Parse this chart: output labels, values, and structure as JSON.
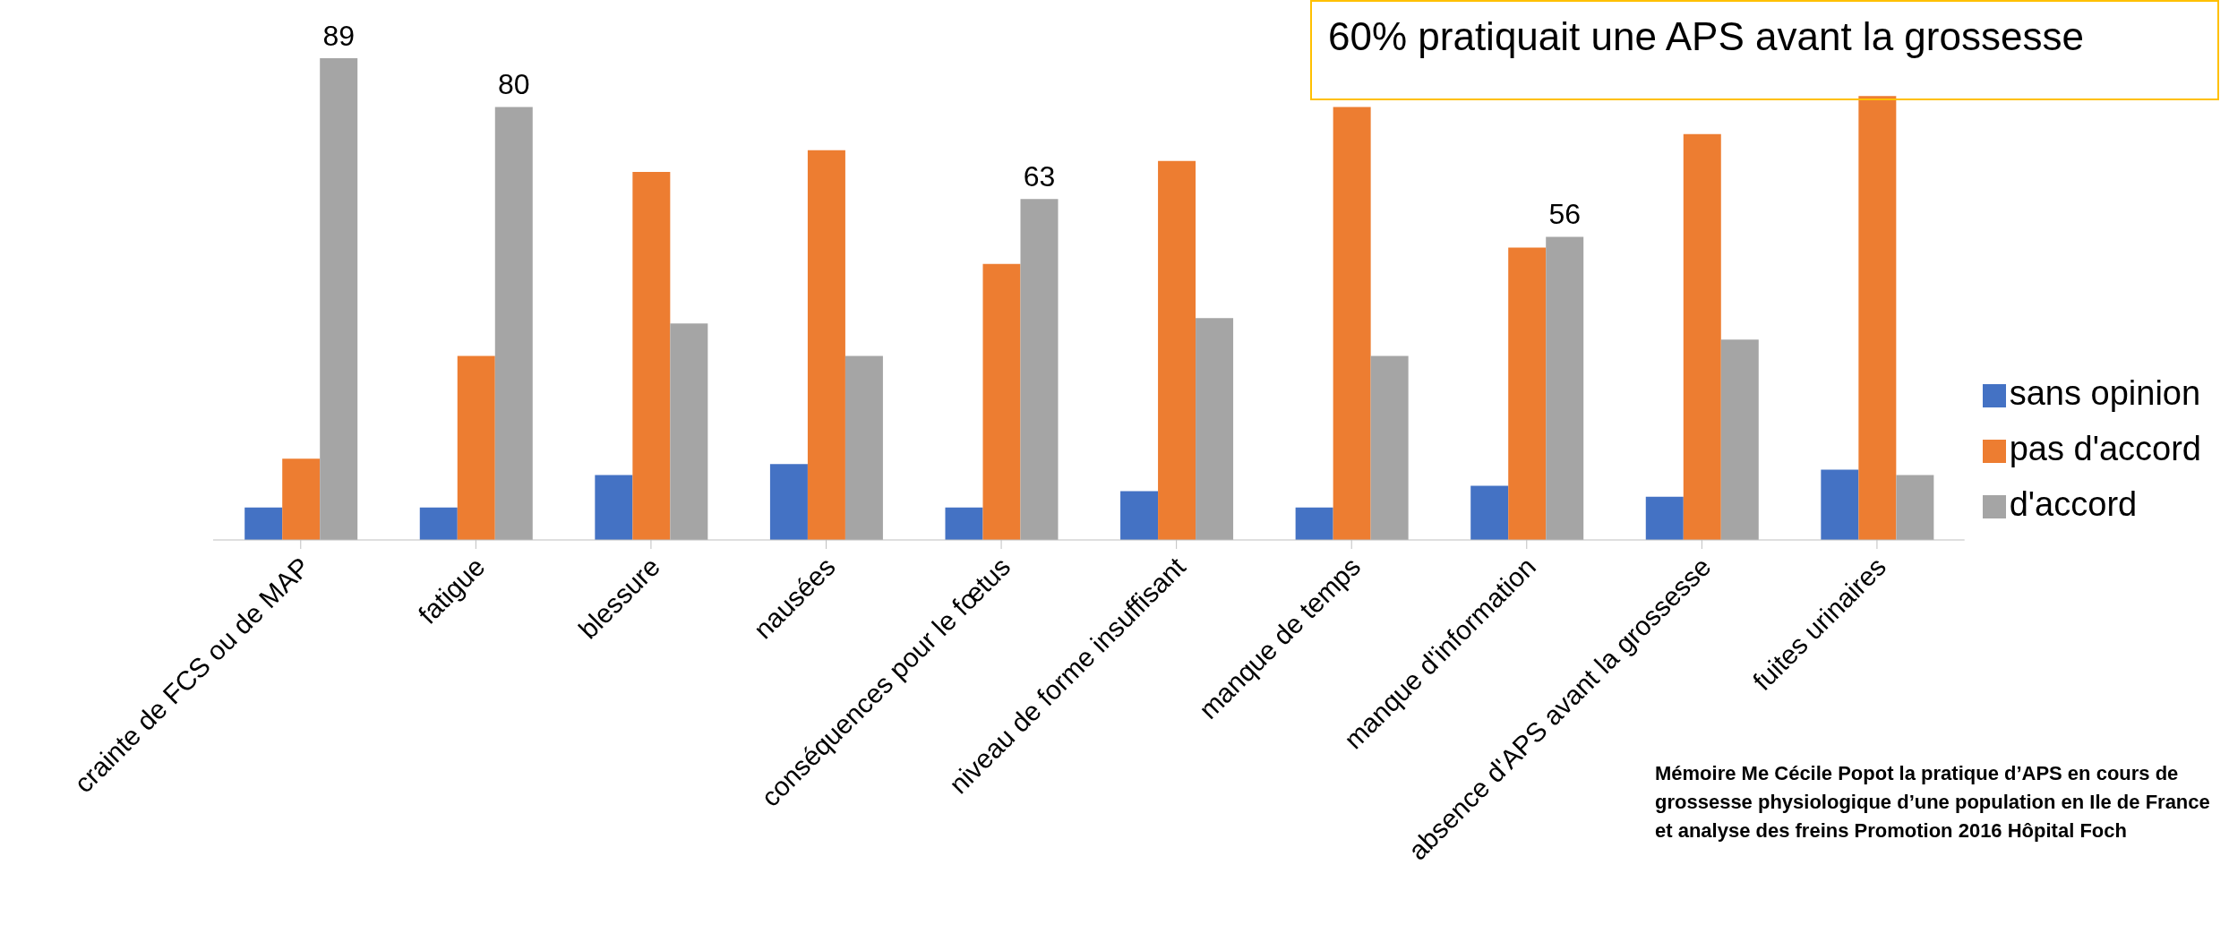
{
  "chart_data": {
    "type": "bar",
    "categories": [
      "crainte de FCS ou de MAP",
      "fatigue",
      "blessure",
      "nausées",
      "conséquences pour le fœtus",
      "niveau de forme insuffisant",
      "manque de temps",
      "manque d'information",
      "absence d'APS avant la grossesse",
      "fuites urinaires"
    ],
    "series": [
      {
        "name": "sans opinion",
        "color": "#4472c4",
        "values": [
          6,
          6,
          12,
          14,
          6,
          9,
          6,
          10,
          8,
          13
        ]
      },
      {
        "name": "pas d'accord",
        "color": "#ed7d31",
        "values": [
          15,
          34,
          68,
          72,
          51,
          70,
          80,
          54,
          75,
          82
        ]
      },
      {
        "name": "d'accord",
        "color": "#a5a5a5",
        "values": [
          89,
          80,
          40,
          34,
          63,
          41,
          34,
          56,
          37,
          12
        ],
        "value_labels": [
          "89",
          "80",
          null,
          null,
          "63",
          null,
          null,
          "56",
          null,
          null
        ]
      }
    ],
    "legend": "right",
    "annotations": [
      "60% pratiquait une APS avant la grossesse",
      "Mémoire  Me Cécile Popot la pratique d’APS en cours de grossesse physiologique d’une population en Ile de France et analyse des freins  Promotion 2016 Hôpital Foch"
    ]
  }
}
